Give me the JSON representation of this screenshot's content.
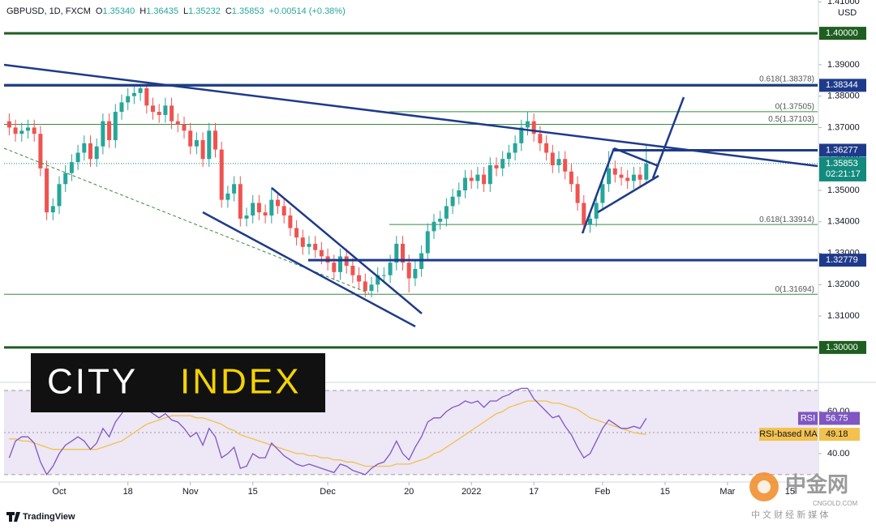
{
  "chart_data": [
    {
      "type": "candlestick",
      "title": "GBPUSD, 1D, FXCM",
      "header_labels": [
        "O",
        "H",
        "L",
        "C"
      ],
      "header_values": [
        "1.35340",
        "1.36435",
        "1.35232",
        "1.35853"
      ],
      "change": "+0.00514 (+0.38%)",
      "currency": "USD",
      "up_color": "#26a69a",
      "down_color": "#ef5350",
      "ohlc": [
        [
          1.372,
          1.3745,
          1.3675,
          1.37
        ],
        [
          1.37,
          1.3725,
          1.3655,
          1.368
        ],
        [
          1.368,
          1.3715,
          1.3655,
          1.369
        ],
        [
          1.369,
          1.3725,
          1.3665,
          1.37
        ],
        [
          1.37,
          1.3725,
          1.3655,
          1.368
        ],
        [
          1.368,
          1.3705,
          1.3545,
          1.357
        ],
        [
          1.357,
          1.3595,
          1.3405,
          1.343
        ],
        [
          1.343,
          1.3475,
          1.3405,
          1.345
        ],
        [
          1.345,
          1.3545,
          1.3425,
          1.352
        ],
        [
          1.352,
          1.358,
          1.3495,
          1.3555
        ],
        [
          1.3555,
          1.3615,
          1.353,
          1.359
        ],
        [
          1.359,
          1.3645,
          1.3565,
          1.362
        ],
        [
          1.362,
          1.3675,
          1.3595,
          1.365
        ],
        [
          1.365,
          1.3675,
          1.3575,
          1.36
        ],
        [
          1.36,
          1.3665,
          1.3575,
          1.364
        ],
        [
          1.364,
          1.3745,
          1.3615,
          1.372
        ],
        [
          1.372,
          1.3745,
          1.3635,
          1.366
        ],
        [
          1.366,
          1.3775,
          1.3635,
          1.375
        ],
        [
          1.375,
          1.3805,
          1.3725,
          1.378
        ],
        [
          1.378,
          1.3825,
          1.3755,
          1.38
        ],
        [
          1.38,
          1.3835,
          1.3775,
          1.381
        ],
        [
          1.381,
          1.3834,
          1.3785,
          1.3825
        ],
        [
          1.3825,
          1.384,
          1.3745,
          1.377
        ],
        [
          1.377,
          1.3795,
          1.3725,
          1.375
        ],
        [
          1.375,
          1.3775,
          1.3715,
          1.374
        ],
        [
          1.374,
          1.3795,
          1.3715,
          1.377
        ],
        [
          1.377,
          1.3795,
          1.3695,
          1.372
        ],
        [
          1.372,
          1.3745,
          1.3685,
          1.371
        ],
        [
          1.371,
          1.3735,
          1.3665,
          1.369
        ],
        [
          1.369,
          1.3715,
          1.3615,
          1.364
        ],
        [
          1.364,
          1.3685,
          1.3615,
          1.366
        ],
        [
          1.366,
          1.3685,
          1.3575,
          1.36
        ],
        [
          1.36,
          1.3715,
          1.3575,
          1.369
        ],
        [
          1.369,
          1.3715,
          1.3605,
          1.363
        ],
        [
          1.363,
          1.3655,
          1.3445,
          1.347
        ],
        [
          1.347,
          1.3515,
          1.3445,
          1.349
        ],
        [
          1.349,
          1.3545,
          1.3465,
          1.352
        ],
        [
          1.352,
          1.3545,
          1.3385,
          1.341
        ],
        [
          1.341,
          1.3445,
          1.3385,
          1.342
        ],
        [
          1.342,
          1.3485,
          1.3395,
          1.346
        ],
        [
          1.346,
          1.3485,
          1.3405,
          1.343
        ],
        [
          1.343,
          1.3455,
          1.3395,
          1.342
        ],
        [
          1.342,
          1.351,
          1.3395,
          1.347
        ],
        [
          1.347,
          1.3495,
          1.3425,
          1.345
        ],
        [
          1.345,
          1.3475,
          1.3395,
          1.342
        ],
        [
          1.342,
          1.3445,
          1.3355,
          1.338
        ],
        [
          1.338,
          1.3405,
          1.3325,
          1.335
        ],
        [
          1.335,
          1.3375,
          1.3295,
          1.332
        ],
        [
          1.332,
          1.3355,
          1.3295,
          1.333
        ],
        [
          1.333,
          1.3355,
          1.3285,
          1.331
        ],
        [
          1.331,
          1.3335,
          1.3265,
          1.329
        ],
        [
          1.329,
          1.3315,
          1.3245,
          1.327
        ],
        [
          1.327,
          1.3295,
          1.3215,
          1.324
        ],
        [
          1.324,
          1.3315,
          1.3215,
          1.329
        ],
        [
          1.329,
          1.3315,
          1.3235,
          1.326
        ],
        [
          1.326,
          1.3285,
          1.3205,
          1.323
        ],
        [
          1.323,
          1.3255,
          1.3185,
          1.321
        ],
        [
          1.321,
          1.3235,
          1.316,
          1.318
        ],
        [
          1.318,
          1.3225,
          1.316,
          1.32
        ],
        [
          1.32,
          1.3255,
          1.3175,
          1.323
        ],
        [
          1.323,
          1.3255,
          1.3205,
          1.323
        ],
        [
          1.323,
          1.3295,
          1.3205,
          1.327
        ],
        [
          1.327,
          1.3355,
          1.3245,
          1.333
        ],
        [
          1.333,
          1.3355,
          1.3245,
          1.327
        ],
        [
          1.327,
          1.3295,
          1.3175,
          1.322
        ],
        [
          1.322,
          1.3275,
          1.3195,
          1.325
        ],
        [
          1.325,
          1.3325,
          1.3225,
          1.33
        ],
        [
          1.33,
          1.3395,
          1.3275,
          1.337
        ],
        [
          1.337,
          1.3425,
          1.3345,
          1.34
        ],
        [
          1.34,
          1.3435,
          1.3375,
          1.341
        ],
        [
          1.341,
          1.3475,
          1.3385,
          1.345
        ],
        [
          1.345,
          1.3505,
          1.3425,
          1.348
        ],
        [
          1.348,
          1.3525,
          1.3455,
          1.35
        ],
        [
          1.35,
          1.3565,
          1.3475,
          1.354
        ],
        [
          1.354,
          1.3565,
          1.3505,
          1.353
        ],
        [
          1.353,
          1.3575,
          1.3505,
          1.355
        ],
        [
          1.355,
          1.3575,
          1.3495,
          1.352
        ],
        [
          1.352,
          1.3605,
          1.3495,
          1.358
        ],
        [
          1.358,
          1.3605,
          1.3545,
          1.357
        ],
        [
          1.357,
          1.3625,
          1.3545,
          1.36
        ],
        [
          1.36,
          1.3645,
          1.3575,
          1.362
        ],
        [
          1.362,
          1.3675,
          1.3595,
          1.365
        ],
        [
          1.365,
          1.3725,
          1.3625,
          1.37
        ],
        [
          1.37,
          1.375,
          1.3675,
          1.372
        ],
        [
          1.372,
          1.3745,
          1.3655,
          1.368
        ],
        [
          1.368,
          1.3705,
          1.3625,
          1.365
        ],
        [
          1.365,
          1.3675,
          1.3595,
          1.362
        ],
        [
          1.362,
          1.3645,
          1.3555,
          1.358
        ],
        [
          1.358,
          1.3625,
          1.3555,
          1.36
        ],
        [
          1.36,
          1.3625,
          1.3535,
          1.356
        ],
        [
          1.356,
          1.3585,
          1.3495,
          1.352
        ],
        [
          1.352,
          1.3545,
          1.3435,
          1.346
        ],
        [
          1.346,
          1.3485,
          1.3365,
          1.339
        ],
        [
          1.339,
          1.3435,
          1.3365,
          1.341
        ],
        [
          1.341,
          1.3485,
          1.3385,
          1.346
        ],
        [
          1.346,
          1.3545,
          1.3435,
          1.352
        ],
        [
          1.352,
          1.3625,
          1.3495,
          1.357
        ],
        [
          1.357,
          1.3595,
          1.3525,
          1.355
        ],
        [
          1.355,
          1.3575,
          1.3515,
          1.354
        ],
        [
          1.354,
          1.3565,
          1.3505,
          1.353
        ],
        [
          1.353,
          1.3575,
          1.3505,
          1.355
        ],
        [
          1.355,
          1.3575,
          1.3509,
          1.3534
        ],
        [
          1.3534,
          1.36435,
          1.35232,
          1.35853
        ]
      ],
      "ylim": [
        1.2894,
        1.4106
      ],
      "yticks": [
        {
          "value": 1.31,
          "label": "1.31000"
        },
        {
          "value": 1.32,
          "label": "1.32000"
        },
        {
          "value": 1.33,
          "label": "1.33000"
        },
        {
          "value": 1.34,
          "label": "1.34000"
        },
        {
          "value": 1.35,
          "label": "1.35000"
        },
        {
          "value": 1.36,
          "label": "1.36000"
        },
        {
          "value": 1.37,
          "label": "1.37000"
        },
        {
          "value": 1.38,
          "label": "1.38000"
        },
        {
          "value": 1.39,
          "label": "1.39000"
        },
        {
          "value": 1.41,
          "label": "1.41000"
        }
      ],
      "grid": false,
      "levels": [
        {
          "value": 1.4,
          "label": "1.40000",
          "color": "#1e5e20"
        },
        {
          "value": 1.38344,
          "label": "1.38344",
          "color": "#1e3a8a"
        },
        {
          "value": 1.36277,
          "label": "1.36277",
          "color": "#1e3a8a"
        },
        {
          "value": 1.32779,
          "label": "1.32779",
          "color": "#1e3a8a"
        },
        {
          "value": 1.3,
          "label": "1.30000",
          "color": "#1e5e20"
        }
      ],
      "fib_levels": [
        {
          "value": 1.38378,
          "label": "0.618(1.38378)"
        },
        {
          "value": 1.37505,
          "label": "0(1.37505)"
        },
        {
          "value": 1.37103,
          "label": "0.5(1.37103)"
        },
        {
          "value": 1.33914,
          "label": "0.618(1.33914)"
        },
        {
          "value": 1.31694,
          "label": "0(1.31694)"
        }
      ],
      "fib_color": "#3a8a3e",
      "last_price": {
        "value": 1.35853,
        "label": "1.35853",
        "countdown": "02:21:17",
        "color": "#138a7d"
      }
    },
    {
      "type": "line",
      "series": [
        {
          "name": "RSI",
          "color": "#7e57c2",
          "values": [
            38,
            46,
            48,
            48,
            45,
            36,
            30,
            34,
            40,
            44,
            46,
            48,
            46,
            42,
            45,
            52,
            48,
            55,
            59,
            63,
            66,
            68,
            61,
            59,
            57,
            59,
            56,
            55,
            52,
            48,
            50,
            44,
            52,
            48,
            38,
            40,
            43,
            33,
            34,
            40,
            38,
            38,
            45,
            42,
            39,
            37,
            35,
            34,
            35,
            34,
            33,
            32,
            31,
            35,
            34,
            32,
            31,
            30,
            33,
            35,
            36,
            40,
            46,
            40,
            37,
            43,
            48,
            55,
            57,
            57,
            60,
            62,
            63,
            65,
            64,
            65,
            62,
            65,
            65,
            67,
            68,
            70,
            71,
            71,
            66,
            63,
            60,
            57,
            58,
            53,
            49,
            43,
            38,
            40,
            46,
            52,
            56,
            54,
            52,
            52,
            53,
            52,
            56.75
          ]
        },
        {
          "name": "RSI-based MA",
          "color": "#f2c14e",
          "values": [
            47,
            47,
            46,
            46,
            45,
            44,
            43,
            42,
            42,
            42,
            42,
            42,
            42,
            42,
            42,
            43,
            44,
            45,
            46,
            48,
            50,
            52,
            54,
            55,
            56,
            57,
            58,
            58,
            58,
            58,
            57,
            57,
            56,
            55,
            54,
            52,
            51,
            49,
            48,
            47,
            46,
            45,
            44,
            43,
            42,
            41,
            40,
            40,
            39,
            39,
            38,
            38,
            37,
            37,
            36,
            36,
            35,
            34,
            34,
            34,
            34,
            34,
            35,
            35,
            35,
            36,
            37,
            38,
            40,
            41,
            43,
            45,
            47,
            49,
            51,
            53,
            55,
            57,
            59,
            60,
            62,
            63,
            64,
            65,
            65,
            65,
            65,
            64,
            64,
            63,
            62,
            61,
            59,
            57,
            56,
            55,
            54,
            53,
            52,
            51,
            50,
            49.5,
            49.18
          ]
        }
      ],
      "ylim": [
        26.5,
        72.7
      ],
      "yticks": [
        {
          "value": 60,
          "label": "60.00"
        },
        {
          "value": 40,
          "label": "40.00"
        }
      ],
      "bands": [
        70,
        50,
        30
      ],
      "band_fill": "#ede7f6",
      "xlim": [
        -0.83,
        129.43
      ],
      "xticks": [
        {
          "value": 8,
          "label": "Oct"
        },
        {
          "value": 19,
          "label": "18"
        },
        {
          "value": 29,
          "label": "Nov"
        },
        {
          "value": 39,
          "label": "15"
        },
        {
          "value": 51,
          "label": "Dec"
        },
        {
          "value": 64,
          "label": "20"
        },
        {
          "value": 74,
          "label": "2022"
        },
        {
          "value": 84,
          "label": "17"
        },
        {
          "value": 95,
          "label": "Feb"
        },
        {
          "value": 105,
          "label": "15"
        },
        {
          "value": 115,
          "label": "Mar"
        },
        {
          "value": 125,
          "label": "15"
        }
      ]
    }
  ],
  "branding": {
    "city": "CITY",
    "index": "INDEX",
    "tradingview": "TradingView",
    "cngold": "中金网",
    "cngold_url": "CNGOLD.COM",
    "cngold_tag": "中 文 财 经 新 媒 体"
  }
}
